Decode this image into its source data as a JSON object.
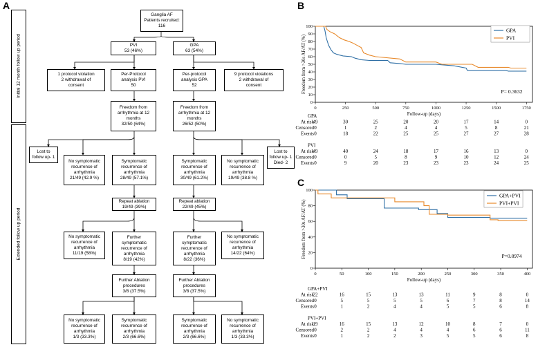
{
  "panels": {
    "a": "A",
    "b": "B",
    "c": "C"
  },
  "flow": {
    "side_top": "Initial 12 month follow up period",
    "side_bottom": "Extended follow up period",
    "recruited": "Ganglia AF\nPatients recruited:\n116",
    "pvi": "PVI\n53 (46%)",
    "gpa": "GPA\n63 (54%)",
    "pvi_excl": "1 protocol violation\n2 withdrawal of\nconsent",
    "pvi_pp": "Per-Protocol\nanalysis PVI\n50",
    "gpa_pp": "Per-protocol\nanalysis GPA\n52",
    "gpa_excl": "9 protocol violations\n2 withdrawal of\nconsent",
    "pvi_free": "Freedom from\narrhythmia at 12\nmonths\n32/50 (64%)",
    "gpa_free": "Freedom from\narrhythmia at 12\nmonths\n26/52 (50%)",
    "pvi_lost": "Lost to\nfollow up- 1",
    "gpa_lost": "Lost to\nfollow up- 1\nDied- 2",
    "pvi_nosym": "No symptomatic\nrecurrence of\narrhythmia\n21/49 (42.9 %)",
    "pvi_sym": "Symptomatic\nrecurrence of\narrhythmia\n28/49 (57.1%)",
    "gpa_sym": "Symptomatic\nrecurrence of\narrhythmia\n30/49 (61.2%)",
    "gpa_nosym": "No symptomatic\nrecurrence of\narrhythmia\n19/49 (38.8 %)",
    "pvi_repeat": "Repeat ablation\n19/49 (39%)",
    "gpa_repeat": "Repeat ablation\n22/49 (45%)",
    "pvi_nosym2": "No symptomatic\nrecurrence of\narrhythmia\n11/19 (58%)",
    "pvi_further": "Further\nsymptomatic\nrecurrence of\narrhythmia\n8/19 (42%)",
    "gpa_further": "Further\nsymptomatic\nrecurrence of\narrhythmia\n8/22 (36%)",
    "gpa_nosym2": "No symptomatic\nrecurrence of\narrhythmia\n14/22 (64%)",
    "pvi_fabl": "Further Ablation\nprocedures\n3/8 (37.5%)",
    "gpa_fabl": "Further Ablation\nprocedures\n3/8 (37.5%)",
    "pvi_end1": "No symptomatic\nrecurrence of\narrhythmia\n1/3 (33.3%)",
    "pvi_end2": "Symptomatic\nrecurrence of\narrhythmia\n2/3 (66.6%)",
    "gpa_end1": "Symptomatic\nrecurrence of\narrhythmia\n2/3 (66.6%)",
    "gpa_end2": "No symptomatic\nrecurrence of\narrhythmia\n1/3 (33.3%)"
  },
  "chart_data": [
    {
      "type": "line",
      "title": "",
      "ylabel": "Freedom from >30s AF/AT (%)",
      "xlabel": "Follow-up (days)",
      "xlim": [
        0,
        1800
      ],
      "ylim": [
        0,
        100
      ],
      "xticks": [
        0,
        250,
        500,
        750,
        1000,
        1250,
        1500,
        1750
      ],
      "yticks": [
        0,
        10,
        20,
        30,
        40,
        50,
        60,
        70,
        80,
        90,
        100
      ],
      "pvalue": "P= 0.3632",
      "series": [
        {
          "name": "GPA",
          "color": "#2f6fa5",
          "points": [
            [
              0,
              100
            ],
            [
              70,
              100
            ],
            [
              80,
              94
            ],
            [
              90,
              85
            ],
            [
              100,
              80
            ],
            [
              110,
              75
            ],
            [
              130,
              69
            ],
            [
              150,
              65
            ],
            [
              180,
              63
            ],
            [
              230,
              61
            ],
            [
              300,
              60
            ],
            [
              330,
              58
            ],
            [
              380,
              56
            ],
            [
              450,
              55
            ],
            [
              600,
              55
            ],
            [
              620,
              52
            ],
            [
              700,
              51
            ],
            [
              750,
              50
            ],
            [
              1000,
              50
            ],
            [
              1150,
              48
            ],
            [
              1250,
              45
            ],
            [
              1260,
              42
            ],
            [
              1580,
              42
            ],
            [
              1600,
              41
            ],
            [
              1750,
              41
            ]
          ]
        },
        {
          "name": "PVI",
          "color": "#e8892a",
          "points": [
            [
              0,
              100
            ],
            [
              85,
              100
            ],
            [
              95,
              96
            ],
            [
              120,
              93
            ],
            [
              160,
              90
            ],
            [
              200,
              85
            ],
            [
              240,
              82
            ],
            [
              280,
              80
            ],
            [
              310,
              78
            ],
            [
              380,
              72
            ],
            [
              400,
              65
            ],
            [
              450,
              62
            ],
            [
              500,
              60
            ],
            [
              700,
              57
            ],
            [
              750,
              53
            ],
            [
              1000,
              53
            ],
            [
              1050,
              50
            ],
            [
              1300,
              50
            ],
            [
              1350,
              46
            ],
            [
              1600,
              46
            ],
            [
              1620,
              45
            ],
            [
              1750,
              45
            ]
          ]
        }
      ],
      "table_header": "Follow-up (days)",
      "table_x": [
        0,
        250,
        500,
        750,
        1000,
        1250,
        1500,
        1750
      ],
      "tables": [
        {
          "group": "GPA",
          "rows": [
            {
              "label": "At risk",
              "values": [
                "49",
                "30",
                "25",
                "20",
                "20",
                "17",
                "14",
                "0"
              ]
            },
            {
              "label": "Censored",
              "values": [
                "0",
                "1",
                "2",
                "4",
                "4",
                "5",
                "8",
                "21"
              ]
            },
            {
              "label": "Events",
              "values": [
                "0",
                "18",
                "22",
                "25",
                "25",
                "27",
                "27",
                "28"
              ]
            }
          ]
        },
        {
          "group": "PVI",
          "rows": [
            {
              "label": "At risk",
              "values": [
                "49",
                "40",
                "24",
                "18",
                "17",
                "16",
                "13",
                "0"
              ]
            },
            {
              "label": "Censored",
              "values": [
                "0",
                "0",
                "5",
                "8",
                "9",
                "10",
                "12",
                "24"
              ]
            },
            {
              "label": "Events",
              "values": [
                "0",
                "9",
                "20",
                "23",
                "23",
                "23",
                "24",
                "25"
              ]
            }
          ]
        }
      ]
    },
    {
      "type": "line",
      "ylabel": "Freedom from >30s AF/AT (%)",
      "xlabel": "Follow-up (days)",
      "xlim": [
        0,
        410
      ],
      "ylim": [
        0,
        100
      ],
      "xticks": [
        0,
        50,
        100,
        150,
        200,
        250,
        300,
        350,
        400
      ],
      "yticks": [
        0,
        20,
        40,
        60,
        80,
        100
      ],
      "pvalue": "P=0.8974",
      "series": [
        {
          "name": "GPA+PVI",
          "color": "#2f6fa5",
          "points": [
            [
              0,
              100
            ],
            [
              40,
              100
            ],
            [
              40,
              94
            ],
            [
              60,
              94
            ],
            [
              60,
              89
            ],
            [
              130,
              89
            ],
            [
              130,
              77
            ],
            [
              195,
              77
            ],
            [
              195,
              75
            ],
            [
              230,
              75
            ],
            [
              230,
              70
            ],
            [
              250,
              70
            ],
            [
              250,
              65
            ],
            [
              330,
              65
            ],
            [
              330,
              64
            ],
            [
              400,
              64
            ]
          ]
        },
        {
          "name": "PVI+PVI",
          "color": "#e8892a",
          "points": [
            [
              0,
              100
            ],
            [
              5,
              100
            ],
            [
              5,
              95
            ],
            [
              30,
              95
            ],
            [
              30,
              90
            ],
            [
              150,
              90
            ],
            [
              150,
              85
            ],
            [
              205,
              85
            ],
            [
              205,
              80
            ],
            [
              215,
              80
            ],
            [
              215,
              69
            ],
            [
              250,
              69
            ],
            [
              250,
              68
            ],
            [
              330,
              68
            ],
            [
              330,
              62
            ],
            [
              345,
              62
            ],
            [
              345,
              61
            ],
            [
              400,
              61
            ]
          ]
        }
      ],
      "table_header": "Follow-up (days)",
      "table_x": [
        0,
        50,
        100,
        150,
        200,
        250,
        300,
        350,
        400
      ],
      "tables": [
        {
          "group": "GPA+PVI",
          "rows": [
            {
              "label": "At risk",
              "values": [
                "22",
                "16",
                "15",
                "13",
                "13",
                "11",
                "9",
                "8",
                "0"
              ]
            },
            {
              "label": "Censored",
              "values": [
                "0",
                "5",
                "5",
                "5",
                "5",
                "6",
                "7",
                "8",
                "14"
              ]
            },
            {
              "label": "Events",
              "values": [
                "0",
                "1",
                "2",
                "4",
                "4",
                "5",
                "5",
                "6",
                "8"
              ]
            }
          ]
        },
        {
          "group": "PVI+PVI",
          "rows": [
            {
              "label": "At risk",
              "values": [
                "19",
                "16",
                "15",
                "13",
                "12",
                "10",
                "8",
                "7",
                "0"
              ]
            },
            {
              "label": "Censored",
              "values": [
                "0",
                "2",
                "2",
                "4",
                "4",
                "4",
                "6",
                "6",
                "11"
              ]
            },
            {
              "label": "Events",
              "values": [
                "0",
                "1",
                "2",
                "2",
                "3",
                "5",
                "5",
                "6",
                "8"
              ]
            }
          ]
        }
      ]
    }
  ]
}
